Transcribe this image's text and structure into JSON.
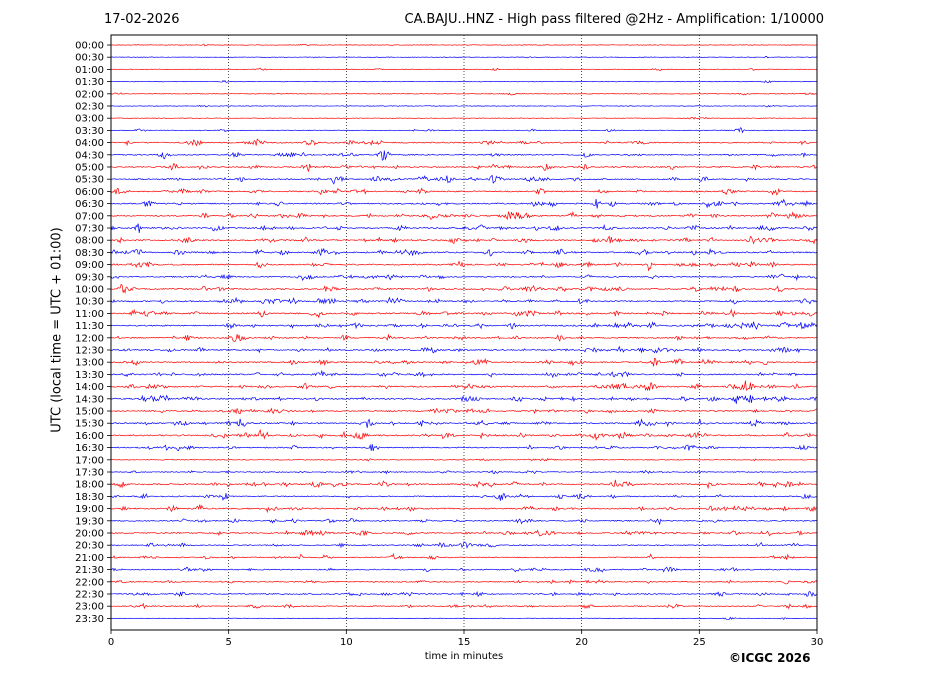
{
  "header": {
    "date": "17-02-2026",
    "title": "CA.BAJU..HNZ - High pass filtered @2Hz - Amplification: 1/10000"
  },
  "footer": {
    "copyright": "©ICGC 2026"
  },
  "chart_data": {
    "type": "line",
    "title": "CA.BAJU..HNZ - High pass filtered @2Hz - Amplification: 1/10000",
    "xlabel": "time in minutes",
    "ylabel": "UTC (local time = UTC + 01:00)",
    "xlim": [
      0,
      30
    ],
    "xticks": [
      0,
      5,
      10,
      15,
      20,
      25,
      30
    ],
    "grid": "vertical dotted lines at 5-minute intervals",
    "trace_labels": [
      "00:00",
      "00:30",
      "01:00",
      "01:30",
      "02:00",
      "02:30",
      "03:00",
      "03:30",
      "04:00",
      "04:30",
      "05:00",
      "05:30",
      "06:00",
      "06:30",
      "07:00",
      "07:30",
      "08:00",
      "08:30",
      "09:00",
      "09:30",
      "10:00",
      "10:30",
      "11:00",
      "11:30",
      "12:00",
      "12:30",
      "13:00",
      "13:30",
      "14:00",
      "14:30",
      "15:00",
      "15:30",
      "16:00",
      "16:30",
      "17:00",
      "17:30",
      "18:00",
      "18:30",
      "19:00",
      "19:30",
      "20:00",
      "20:30",
      "21:00",
      "21:30",
      "22:00",
      "22:30",
      "23:00",
      "23:30"
    ],
    "trace_colors": [
      "#ff0000",
      "#0000ff"
    ],
    "trace_activity": [
      0.05,
      0.05,
      0.12,
      0.05,
      0.1,
      0.04,
      0.04,
      0.2,
      0.6,
      0.55,
      0.6,
      0.65,
      0.6,
      0.7,
      0.7,
      0.75,
      0.8,
      0.75,
      0.65,
      0.6,
      0.7,
      0.7,
      0.8,
      0.75,
      0.6,
      0.7,
      0.7,
      0.7,
      0.75,
      0.8,
      0.6,
      0.75,
      0.8,
      0.55,
      0.12,
      0.35,
      0.75,
      0.55,
      0.7,
      0.55,
      0.6,
      0.45,
      0.45,
      0.5,
      0.45,
      0.5,
      0.4,
      0.05
    ]
  }
}
